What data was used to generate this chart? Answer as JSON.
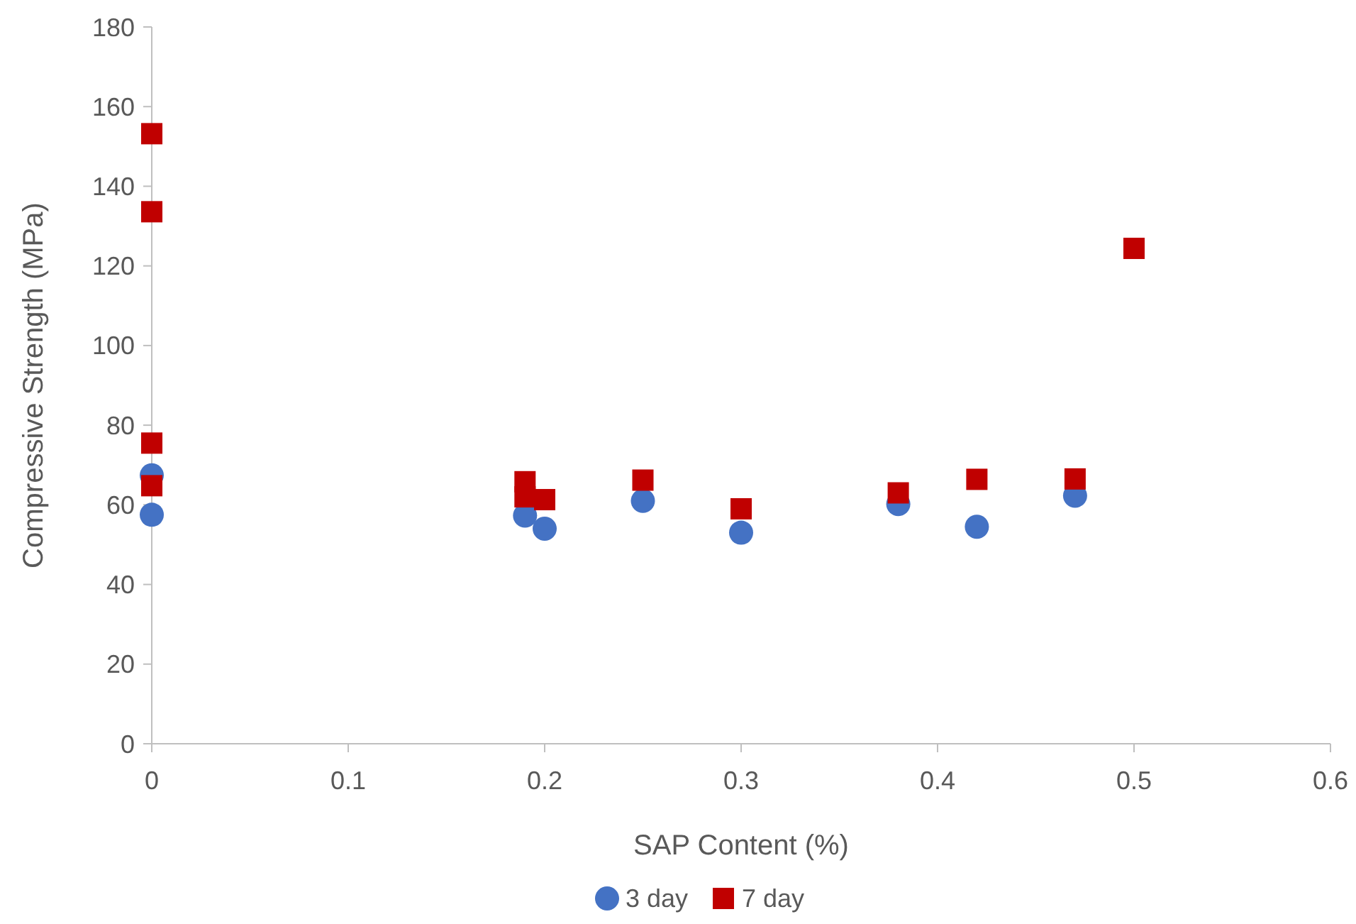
{
  "chart_data": {
    "type": "scatter",
    "xlabel": "SAP Content (%)",
    "ylabel": "Compressive Strength (MPa)",
    "xlim": [
      0,
      0.6
    ],
    "xticks": [
      0,
      0.1,
      0.2,
      0.3,
      0.4,
      0.5,
      0.6
    ],
    "ylim": [
      0,
      180
    ],
    "yticks": [
      0,
      20,
      40,
      60,
      80,
      100,
      120,
      140,
      160,
      180
    ],
    "legend": "bottom",
    "grid": false,
    "series": [
      {
        "name": "3 day",
        "color": "#4472c4",
        "marker": "circle",
        "x": [
          0,
          0,
          0.19,
          0.2,
          0.25,
          0.3,
          0.38,
          0.42,
          0.47
        ],
        "values": [
          67.4,
          57.5,
          57.3,
          54,
          61,
          53,
          60.2,
          54.5,
          62.3
        ]
      },
      {
        "name": "7 day",
        "color": "#c00000",
        "marker": "square",
        "x": [
          0,
          0,
          0,
          0,
          0.19,
          0.19,
          0.2,
          0.25,
          0.3,
          0.38,
          0.42,
          0.47,
          0.5
        ],
        "values": [
          153.2,
          133.6,
          75.5,
          64.8,
          65.8,
          62,
          61.3,
          66.2,
          59,
          63,
          66.4,
          66.5,
          124.4
        ]
      }
    ]
  }
}
